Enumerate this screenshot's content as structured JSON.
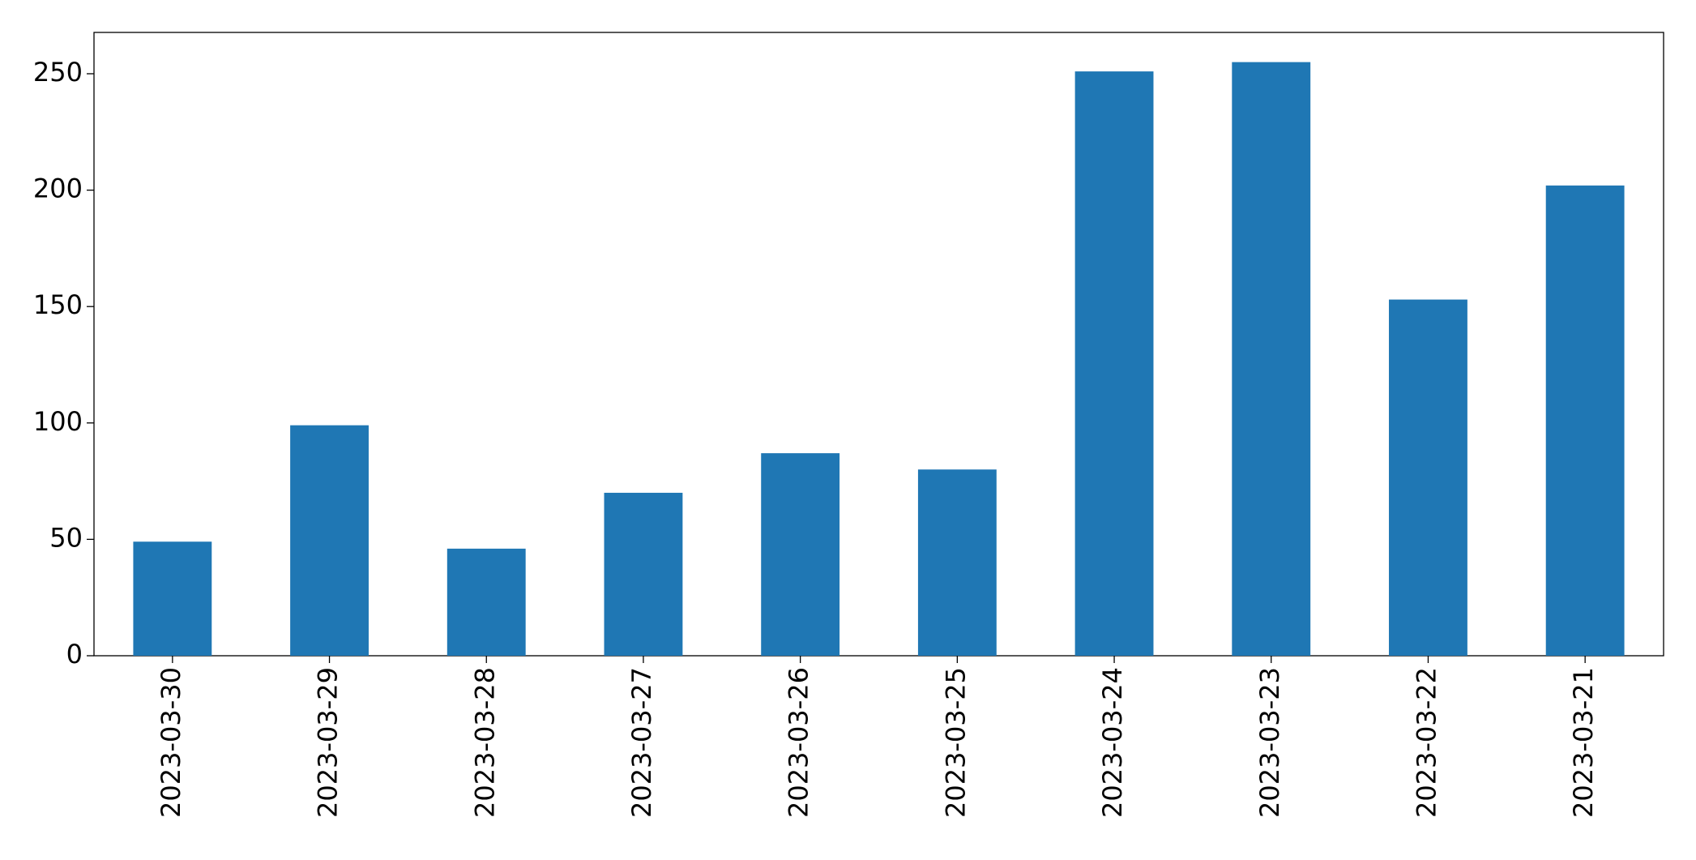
{
  "chart_data": {
    "type": "bar",
    "categories": [
      "2023-03-30",
      "2023-03-29",
      "2023-03-28",
      "2023-03-27",
      "2023-03-26",
      "2023-03-25",
      "2023-03-24",
      "2023-03-23",
      "2023-03-22",
      "2023-03-21"
    ],
    "values": [
      49,
      99,
      46,
      70,
      87,
      80,
      251,
      255,
      153,
      202
    ],
    "color": "#1f77b4",
    "ylim": [
      0,
      267.75
    ],
    "yticks": [
      0,
      50,
      100,
      150,
      200,
      250
    ],
    "grid": false
  }
}
